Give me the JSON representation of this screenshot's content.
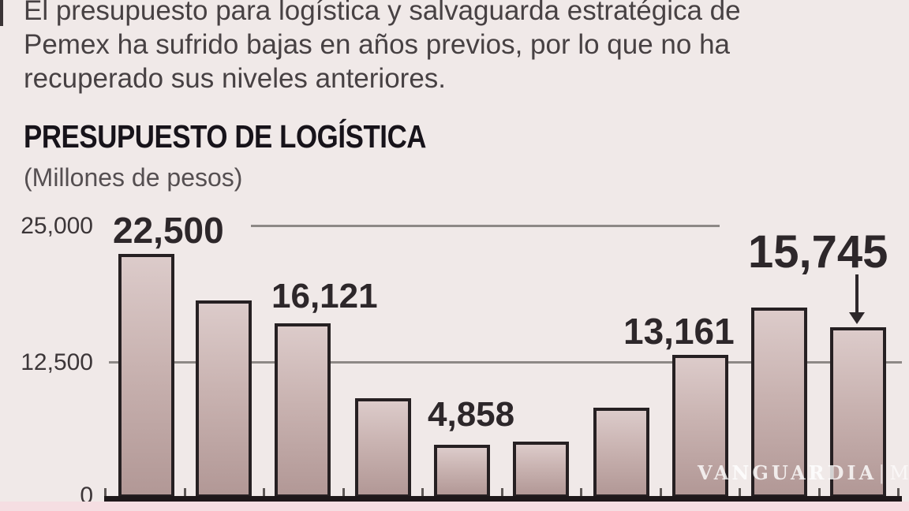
{
  "intro": {
    "lines": [
      "El presupuesto para logística y salvaguarda estratégica de",
      "Pemex ha sufrido bajas en años previos, por lo que no ha",
      "recuperado sus niveles anteriores."
    ]
  },
  "header": {
    "title": "PRESUPUESTO DE LOGÍSTICA",
    "subtitle": "(Millones de pesos)"
  },
  "watermark": {
    "brand": "VANGUARDIA",
    "separator": "|",
    "suffix": "MX"
  },
  "chart_data": {
    "type": "bar",
    "title": "PRESUPUESTO DE LOGÍSTICA",
    "units_label": "(Millones de pesos)",
    "n_bars": 10,
    "values": [
      22500,
      18200,
      16121,
      9200,
      4858,
      5200,
      8300,
      13161,
      17600,
      15745
    ],
    "values_estimated": [
      false,
      true,
      false,
      true,
      false,
      true,
      true,
      false,
      true,
      false
    ],
    "value_labels": [
      "22,500",
      "",
      "16,121",
      "",
      "4,858",
      "",
      "",
      "13,161",
      "",
      "15,745"
    ],
    "yticks": [
      "25,000",
      "12,500",
      "0"
    ],
    "ylim": [
      0,
      25000
    ],
    "gridlines_at": [
      25000,
      12500
    ],
    "x_axis_labels_visible": false,
    "annotation": "arrow pointing to last bar (15,745)",
    "colors": {
      "background": "#f0e9e8",
      "bar_fill_top": "#dccbca",
      "bar_fill_bottom": "#b29896",
      "bar_border": "#262022",
      "gridline": "#8d8886",
      "baseline": "#1e181a",
      "text": "#2d272a",
      "bottom_strip": "#f5dee2"
    }
  }
}
